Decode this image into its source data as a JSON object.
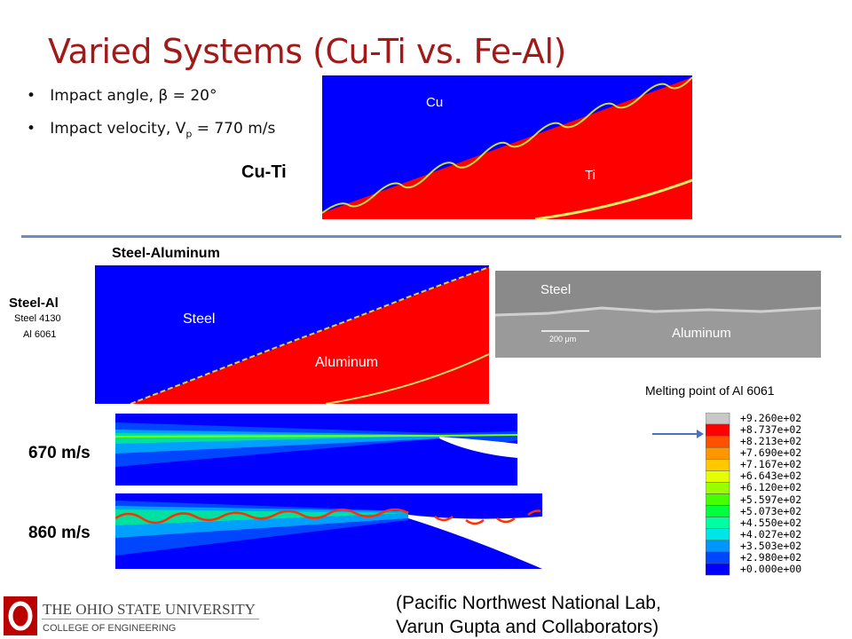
{
  "title": "Varied Systems (Cu-Ti vs. Fe-Al)",
  "bullets": [
    {
      "text": "Impact angle, β = 20°"
    },
    {
      "text": "Impact velocity, V",
      "sub": "p",
      "rest": " = 770 m/s"
    }
  ],
  "cu_ti": {
    "label": "Cu-Ti",
    "top": "Cu",
    "bottom": "Ti"
  },
  "steel_al": {
    "heading": "Steel-Aluminum",
    "label": "Steel-Al",
    "steel_grade": "Steel 4130",
    "al_grade": "Al 6061",
    "sim_top": "Steel",
    "sim_bottom": "Aluminum",
    "micro_top": "Steel",
    "micro_bottom": "Aluminum",
    "scale_bar": "200 μm"
  },
  "velocities": [
    "670 m/s",
    "860 m/s"
  ],
  "legend": {
    "title": "Melting point of Al 6061",
    "labels": [
      "+9.260e+02",
      "+8.737e+02",
      "+8.213e+02",
      "+7.690e+02",
      "+7.167e+02",
      "+6.643e+02",
      "+6.120e+02",
      "+5.597e+02",
      "+5.073e+02",
      "+4.550e+02",
      "+4.027e+02",
      "+3.503e+02",
      "+2.980e+02",
      "+0.000e+00"
    ]
  },
  "footer": {
    "university": "THE OHIO STATE UNIVERSITY",
    "college": "COLLEGE OF ENGINEERING"
  },
  "citation": [
    "(Pacific Northwest National Lab,",
    "Varun Gupta and Collaborators)"
  ]
}
